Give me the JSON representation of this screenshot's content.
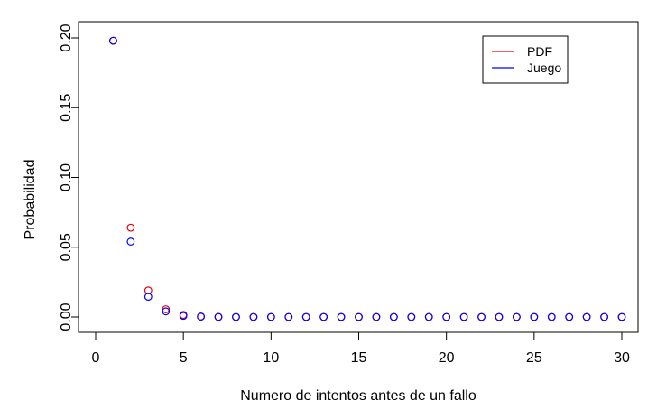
{
  "chart_data": {
    "type": "scatter",
    "xlabel": "Numero de intentos antes de un fallo",
    "ylabel": "Probabilidad",
    "xlim": [
      0,
      30
    ],
    "ylim": [
      0,
      0.2
    ],
    "x_ticks": [
      0,
      5,
      10,
      15,
      20,
      25,
      30
    ],
    "y_ticks": [
      0.0,
      0.05,
      0.1,
      0.15,
      0.2
    ],
    "x_tick_labels": [
      "0",
      "5",
      "10",
      "15",
      "20",
      "25",
      "30"
    ],
    "y_tick_labels": [
      "0.00",
      "0.05",
      "0.10",
      "0.15",
      "0.20"
    ],
    "grid": false,
    "legend": {
      "position": "top-right",
      "entries": [
        {
          "label": "PDF",
          "color": "#e8000b"
        },
        {
          "label": "Juego",
          "color": "#0000ff"
        }
      ]
    },
    "series": [
      {
        "name": "PDF",
        "color": "#e8000b",
        "marker": "open-circle",
        "x": [
          1,
          2,
          3,
          4,
          5,
          6,
          7,
          8,
          9,
          10,
          11,
          12,
          13,
          14,
          15,
          16,
          17,
          18,
          19,
          20,
          21,
          22,
          23,
          24,
          25,
          26,
          27,
          28,
          29,
          30
        ],
        "y": [
          0.198,
          0.064,
          0.019,
          0.0055,
          0.0015,
          0.0004,
          0.0001,
          0,
          0,
          0,
          0,
          0,
          0,
          0,
          0,
          0,
          0,
          0,
          0,
          0,
          0,
          0,
          0,
          0,
          0,
          0,
          0,
          0,
          0,
          0
        ]
      },
      {
        "name": "Juego",
        "color": "#0000ff",
        "marker": "open-circle",
        "x": [
          1,
          2,
          3,
          4,
          5,
          6,
          7,
          8,
          9,
          10,
          11,
          12,
          13,
          14,
          15,
          16,
          17,
          18,
          19,
          20,
          21,
          22,
          23,
          24,
          25,
          26,
          27,
          28,
          29,
          30
        ],
        "y": [
          0.198,
          0.054,
          0.0145,
          0.004,
          0.0008,
          0.0002,
          0,
          0,
          0,
          0,
          0,
          0,
          0,
          0,
          0,
          0,
          0,
          0,
          0,
          0,
          0,
          0,
          0,
          0,
          0,
          0,
          0,
          0,
          0,
          0
        ]
      }
    ]
  }
}
